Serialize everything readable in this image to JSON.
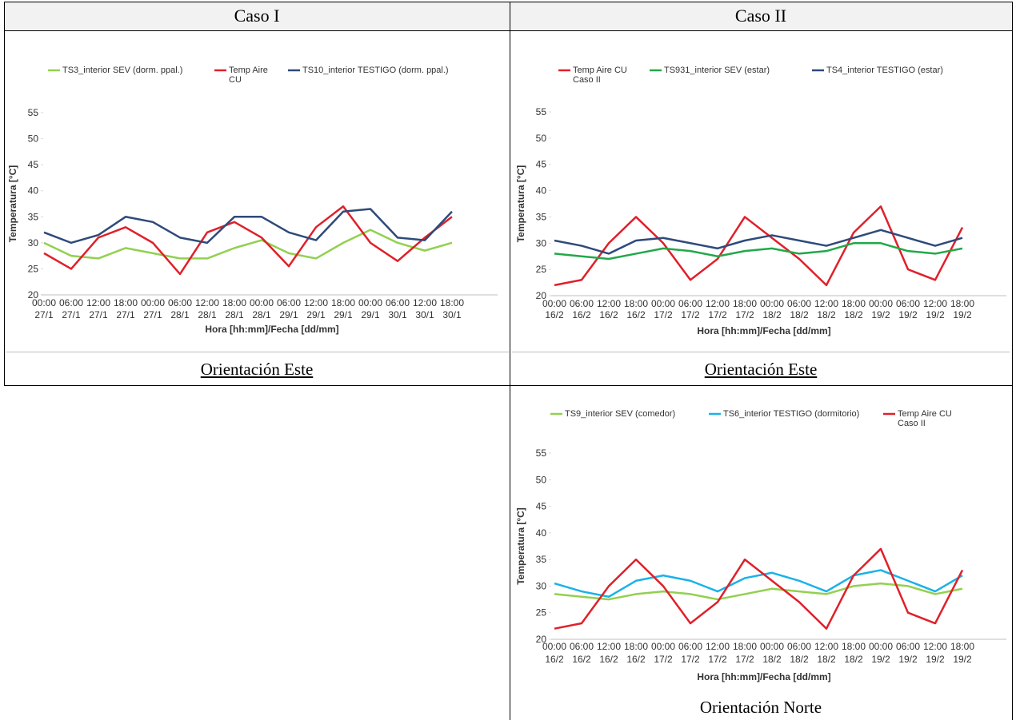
{
  "table": {
    "headers": [
      "Caso I",
      "Caso II"
    ],
    "captions": [
      "Orientación Este",
      "Orientación Este",
      "Orientación Norte"
    ]
  },
  "chart_data": [
    {
      "type": "line",
      "y_axis_label": "Temperatura [°C]",
      "x_axis_label": "Hora [hh:mm]/Fecha [dd/mm]",
      "categories": [
        "00:00",
        "06:00",
        "12:00",
        "18:00",
        "00:00",
        "06:00",
        "12:00",
        "18:00",
        "00:00",
        "06:00",
        "12:00",
        "18:00",
        "00:00",
        "06:00",
        "12:00",
        "18:00"
      ],
      "category_dates": [
        "27/1",
        "27/1",
        "27/1",
        "27/1",
        "27/1",
        "28/1",
        "28/1",
        "28/1",
        "28/1",
        "29/1",
        "29/1",
        "29/1",
        "29/1",
        "30/1",
        "30/1",
        "30/1"
      ],
      "ylim": [
        20,
        55
      ],
      "yticks": [
        20,
        25,
        30,
        35,
        40,
        45,
        50,
        55
      ],
      "series": [
        {
          "name": "TS3_interior SEV (dorm. ppal.)",
          "color": "#92d050",
          "values": [
            30,
            27.5,
            27,
            29,
            28,
            27,
            27,
            29,
            30.5,
            28,
            27,
            30,
            32.5,
            30,
            28.5,
            30
          ]
        },
        {
          "name": "Temp Aire CU",
          "color": "#e0202a",
          "values": [
            28,
            25,
            31,
            33,
            30,
            24,
            32,
            34,
            31,
            25.5,
            33,
            37,
            30,
            26.5,
            31,
            35
          ]
        },
        {
          "name": "TS10_interior TESTIGO (dorm. ppal.)",
          "color": "#2e4a7a",
          "values": [
            32,
            30,
            31.5,
            35,
            34,
            31,
            30,
            35,
            35,
            32,
            30.5,
            36,
            36.5,
            31,
            30.5,
            36
          ]
        }
      ]
    },
    {
      "type": "line",
      "y_axis_label": "Temperatura [°C]",
      "x_axis_label": "Hora [hh:mm]/Fecha [dd/mm]",
      "categories": [
        "00:00",
        "06:00",
        "12:00",
        "18:00",
        "00:00",
        "06:00",
        "12:00",
        "18:00",
        "00:00",
        "06:00",
        "12:00",
        "18:00",
        "00:00",
        "06:00",
        "12:00",
        "18:00"
      ],
      "category_dates": [
        "16/2",
        "16/2",
        "16/2",
        "16/2",
        "17/2",
        "17/2",
        "17/2",
        "17/2",
        "18/2",
        "18/2",
        "18/2",
        "18/2",
        "19/2",
        "19/2",
        "19/2",
        "19/2"
      ],
      "ylim": [
        20,
        55
      ],
      "yticks": [
        20,
        25,
        30,
        35,
        40,
        45,
        50,
        55
      ],
      "series": [
        {
          "name": "Temp Aire CU Caso II",
          "color": "#e0202a",
          "values": [
            22,
            23,
            30,
            35,
            30,
            23,
            27,
            35,
            31,
            27,
            22,
            32,
            37,
            25,
            23,
            33
          ]
        },
        {
          "name": "TS931_interior SEV (estar)",
          "color": "#22a84a",
          "values": [
            28,
            27.5,
            27,
            28,
            29,
            28.5,
            27.5,
            28.5,
            29,
            28,
            28.5,
            30,
            30,
            28.5,
            28,
            29
          ]
        },
        {
          "name": "TS4_interior  TESTIGO (estar)",
          "color": "#2e4a7a",
          "values": [
            30.5,
            29.5,
            28,
            30.5,
            31,
            30,
            29,
            30.5,
            31.5,
            30.5,
            29.5,
            31,
            32.5,
            31,
            29.5,
            31
          ]
        }
      ]
    },
    {
      "type": "line",
      "y_axis_label": "Temperatura [°C]",
      "x_axis_label": "Hora [hh:mm]/Fecha [dd/mm]",
      "categories": [
        "00:00",
        "06:00",
        "12:00",
        "18:00",
        "00:00",
        "06:00",
        "12:00",
        "18:00",
        "00:00",
        "06:00",
        "12:00",
        "18:00",
        "00:00",
        "06:00",
        "12:00",
        "18:00"
      ],
      "category_dates": [
        "16/2",
        "16/2",
        "16/2",
        "16/2",
        "17/2",
        "17/2",
        "17/2",
        "17/2",
        "18/2",
        "18/2",
        "18/2",
        "18/2",
        "19/2",
        "19/2",
        "19/2",
        "19/2"
      ],
      "ylim": [
        20,
        55
      ],
      "yticks": [
        20,
        25,
        30,
        35,
        40,
        45,
        50,
        55
      ],
      "series": [
        {
          "name": "TS9_interior SEV (comedor)",
          "color": "#92d050",
          "values": [
            28.5,
            28,
            27.5,
            28.5,
            29,
            28.5,
            27.5,
            28.5,
            29.5,
            29,
            28.5,
            30,
            30.5,
            30,
            28.5,
            29.5
          ]
        },
        {
          "name": "TS6_interior TESTIGO (dormitorio)",
          "color": "#1ab2e8",
          "values": [
            30.5,
            29,
            28,
            31,
            32,
            31,
            29,
            31.5,
            32.5,
            31,
            29,
            32,
            33,
            31,
            29,
            32
          ]
        },
        {
          "name": "Temp Aire CU Caso II",
          "color": "#e0202a",
          "values": [
            22,
            23,
            30,
            35,
            30,
            23,
            27,
            35,
            31,
            27,
            22,
            32,
            37,
            25,
            23,
            33
          ]
        }
      ]
    }
  ]
}
